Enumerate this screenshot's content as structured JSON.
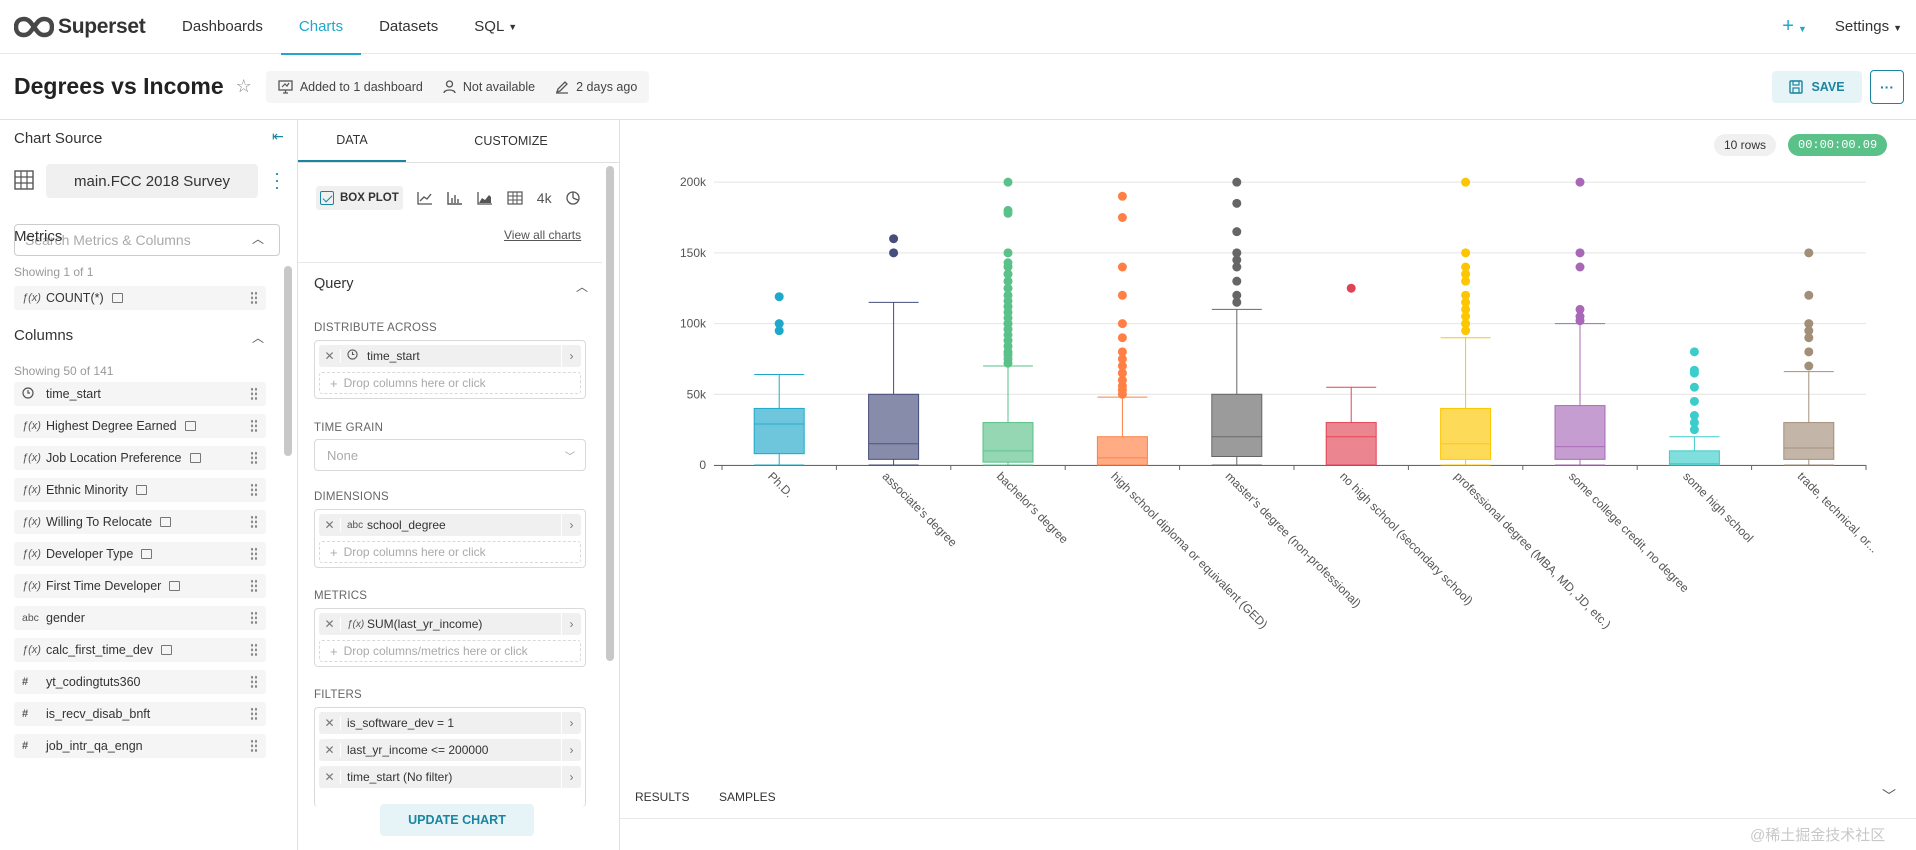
{
  "nav": {
    "brand": "Superset",
    "items": [
      {
        "label": "Dashboards",
        "active": false
      },
      {
        "label": "Charts",
        "active": true
      },
      {
        "label": "Datasets",
        "active": false
      },
      {
        "label": "SQL",
        "active": false
      }
    ],
    "plus": "+",
    "settings": "Settings"
  },
  "header": {
    "title": "Degrees vs Income",
    "meta": [
      "Added to 1 dashboard",
      "Not available",
      "2 days ago"
    ],
    "save": "SAVE",
    "more": "···"
  },
  "source": {
    "label": "Chart Source",
    "datasource": "main.FCC 2018 Survey",
    "search_placeholder": "Search Metrics & Columns"
  },
  "metrics": {
    "title": "Metrics",
    "showing": "Showing 1 of 1",
    "items": [
      {
        "type": "f(x)",
        "name": "COUNT(*)",
        "calc": true
      }
    ]
  },
  "columns": {
    "title": "Columns",
    "showing": "Showing 50 of 141",
    "items": [
      {
        "type": "clock",
        "name": "time_start",
        "calc": false
      },
      {
        "type": "f(x)",
        "name": "Highest Degree Earned",
        "calc": true
      },
      {
        "type": "f(x)",
        "name": "Job Location Preference",
        "calc": true
      },
      {
        "type": "f(x)",
        "name": "Ethnic Minority",
        "calc": true
      },
      {
        "type": "f(x)",
        "name": "Willing To Relocate",
        "calc": true
      },
      {
        "type": "f(x)",
        "name": "Developer Type",
        "calc": true
      },
      {
        "type": "f(x)",
        "name": "First Time Developer",
        "calc": true
      },
      {
        "type": "abc",
        "name": "gender",
        "calc": false
      },
      {
        "type": "f(x)",
        "name": "calc_first_time_dev",
        "calc": true
      },
      {
        "type": "#",
        "name": "yt_codingtuts360",
        "calc": false
      },
      {
        "type": "#",
        "name": "is_recv_disab_bnft",
        "calc": false
      },
      {
        "type": "#",
        "name": "job_intr_qa_engn",
        "calc": false
      }
    ]
  },
  "tabs": [
    "DATA",
    "CUSTOMIZE"
  ],
  "viz": {
    "selected": "BOX PLOT",
    "other_number": "4k",
    "view_all": "View all charts"
  },
  "query": {
    "title": "Query",
    "distribute_label": "DISTRIBUTE ACROSS",
    "distribute_value": "time_start",
    "drop_columns": "Drop columns here or click",
    "time_grain_label": "TIME GRAIN",
    "time_grain_placeholder": "None",
    "dimensions_label": "DIMENSIONS",
    "dimension_value": "school_degree",
    "metrics_label": "METRICS",
    "metric_value": "SUM(last_yr_income)",
    "drop_metrics": "Drop columns/metrics here or click",
    "filters_label": "FILTERS",
    "filters": [
      "is_software_dev = 1",
      "last_yr_income <= 200000",
      "time_start (No filter)"
    ],
    "update": "UPDATE CHART"
  },
  "results": {
    "rows": "10 rows",
    "time": "00:00:00.09",
    "tabs": [
      "RESULTS",
      "SAMPLES"
    ]
  },
  "watermark": "@稀土掘金技术社区",
  "chart_data": {
    "type": "boxplot",
    "title": "",
    "xlabel": "",
    "ylabel": "",
    "ylim": [
      0,
      210000
    ],
    "yticks": [
      0,
      50000,
      100000,
      150000,
      200000
    ],
    "ytick_labels": [
      "0",
      "50k",
      "100k",
      "150k",
      "200k"
    ],
    "grid": true,
    "series": [
      {
        "category": "Ph.D.",
        "color": "#1FA8C9",
        "min": 0,
        "q1": 8000,
        "median": 29000,
        "q3": 40000,
        "max": 64000,
        "outliers": [
          95000,
          100000,
          119000
        ]
      },
      {
        "category": "associate's degree",
        "color": "#454E7C",
        "min": 0,
        "q1": 4000,
        "median": 15000,
        "q3": 50000,
        "max": 115000,
        "outliers": [
          150000,
          160000
        ]
      },
      {
        "category": "bachelor's degree",
        "color": "#5AC189",
        "min": 0,
        "q1": 2000,
        "median": 10000,
        "q3": 30000,
        "max": 70000,
        "outliers": [
          72000,
          75000,
          78000,
          80000,
          84000,
          88000,
          92000,
          96000,
          100000,
          104000,
          108000,
          112000,
          116000,
          120000,
          125000,
          130000,
          135000,
          140000,
          143000,
          150000,
          178000,
          180000,
          200000
        ]
      },
      {
        "category": "high school diploma or equivalent (GED)",
        "color": "#FF7F44",
        "min": 0,
        "q1": 0,
        "median": 5000,
        "q3": 20000,
        "max": 48000,
        "outliers": [
          50000,
          53000,
          56000,
          60000,
          65000,
          70000,
          75000,
          80000,
          90000,
          100000,
          120000,
          140000,
          175000,
          190000
        ]
      },
      {
        "category": "master's degree (non-professional)",
        "color": "#666666",
        "min": 0,
        "q1": 6000,
        "median": 20000,
        "q3": 50000,
        "max": 110000,
        "outliers": [
          115000,
          120000,
          130000,
          140000,
          145000,
          150000,
          165000,
          185000,
          200000
        ]
      },
      {
        "category": "no high school (secondary school)",
        "color": "#E04355",
        "min": 0,
        "q1": 0,
        "median": 20000,
        "q3": 30000,
        "max": 55000,
        "outliers": [
          125000
        ]
      },
      {
        "category": "professional degree (MBA, MD, JD, etc.)",
        "color": "#FCC700",
        "min": 0,
        "q1": 4000,
        "median": 15000,
        "q3": 40000,
        "max": 90000,
        "outliers": [
          95000,
          100000,
          105000,
          110000,
          115000,
          120000,
          130000,
          135000,
          140000,
          150000,
          200000
        ]
      },
      {
        "category": "some college credit, no degree",
        "color": "#A868B7",
        "min": 0,
        "q1": 4000,
        "median": 13000,
        "q3": 42000,
        "max": 100000,
        "outliers": [
          102000,
          105000,
          110000,
          140000,
          150000,
          200000
        ]
      },
      {
        "category": "some high school",
        "color": "#3CCCCB",
        "min": 0,
        "q1": 0,
        "median": 1000,
        "q3": 10000,
        "max": 20000,
        "outliers": [
          25000,
          30000,
          35000,
          45000,
          55000,
          65000,
          67000,
          80000
        ]
      },
      {
        "category": "trade, technical, or...",
        "color": "#A38F79",
        "min": 0,
        "q1": 4000,
        "median": 12000,
        "q3": 30000,
        "max": 66000,
        "outliers": [
          70000,
          80000,
          90000,
          95000,
          100000,
          120000,
          150000
        ]
      }
    ]
  }
}
